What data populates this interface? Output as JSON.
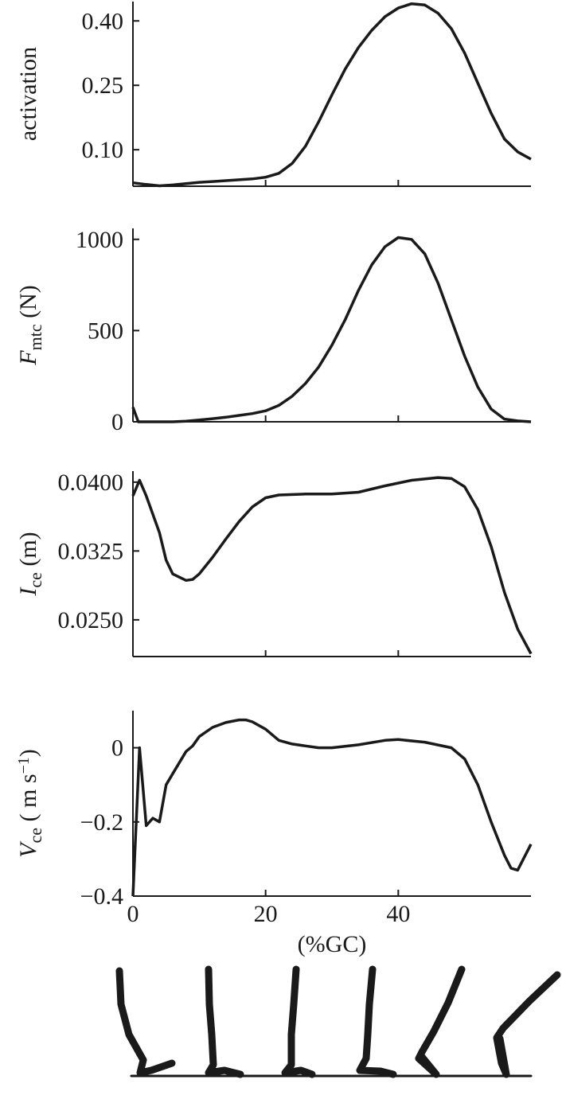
{
  "chart_data": [
    {
      "type": "line",
      "ylabel": [
        {
          "text": "activation"
        }
      ],
      "x": [
        0,
        2,
        4,
        6,
        8,
        10,
        12,
        14,
        16,
        18,
        20,
        22,
        24,
        26,
        28,
        30,
        32,
        34,
        36,
        38,
        40,
        42,
        44,
        46,
        48,
        50,
        52,
        54,
        56,
        58,
        60
      ],
      "values": [
        0.023,
        0.019,
        0.016,
        0.018,
        0.021,
        0.024,
        0.026,
        0.028,
        0.03,
        0.032,
        0.036,
        0.045,
        0.068,
        0.108,
        0.165,
        0.228,
        0.288,
        0.338,
        0.378,
        0.41,
        0.43,
        0.44,
        0.437,
        0.418,
        0.382,
        0.325,
        0.255,
        0.185,
        0.125,
        0.095,
        0.078
      ],
      "color": "#1a1a1a",
      "xlim": [
        0,
        60
      ],
      "ylim": [
        0.015,
        0.445
      ],
      "yticks": [
        {
          "value": 0.1,
          "label": "0.10"
        },
        {
          "value": 0.25,
          "label": "0.25"
        },
        {
          "value": 0.4,
          "label": "0.40"
        }
      ],
      "xticks": [
        20,
        40
      ],
      "show_xtick_labels": false
    },
    {
      "type": "line",
      "ylabel": [
        {
          "text": "F",
          "style": "italic"
        },
        {
          "text": "mtc",
          "style": "sub"
        },
        {
          "text": " (N)"
        }
      ],
      "x": [
        0,
        0.8,
        2,
        4,
        6,
        8,
        10,
        12,
        14,
        16,
        18,
        20,
        22,
        24,
        26,
        28,
        30,
        32,
        34,
        36,
        38,
        40,
        42,
        44,
        46,
        48,
        50,
        52,
        54,
        56,
        58,
        60
      ],
      "values": [
        80,
        0,
        0,
        0,
        0,
        3,
        10,
        17,
        25,
        35,
        45,
        60,
        90,
        140,
        210,
        300,
        420,
        560,
        720,
        860,
        960,
        1010,
        1000,
        920,
        760,
        560,
        360,
        190,
        70,
        15,
        5,
        0
      ],
      "color": "#1a1a1a",
      "xlim": [
        0,
        60
      ],
      "ylim": [
        0,
        1060
      ],
      "yticks": [
        0,
        500,
        1000
      ],
      "xticks": [
        20,
        40
      ],
      "show_xtick_labels": false
    },
    {
      "type": "line",
      "ylabel": [
        {
          "text": "I",
          "style": "italic"
        },
        {
          "text": "ce",
          "style": "sub"
        },
        {
          "text": " (m)"
        }
      ],
      "x": [
        0,
        1,
        2,
        4,
        5,
        6,
        8,
        9,
        10,
        12,
        14,
        16,
        18,
        20,
        22,
        26,
        30,
        34,
        38,
        42,
        46,
        48,
        50,
        52,
        54,
        56,
        58,
        60
      ],
      "values": [
        0.0385,
        0.0402,
        0.0385,
        0.0345,
        0.0315,
        0.03,
        0.0293,
        0.0294,
        0.03,
        0.0318,
        0.0338,
        0.0357,
        0.0373,
        0.0383,
        0.0386,
        0.0387,
        0.0387,
        0.0389,
        0.0396,
        0.0402,
        0.0405,
        0.0404,
        0.0395,
        0.037,
        0.033,
        0.028,
        0.024,
        0.0213
      ],
      "color": "#1a1a1a",
      "xlim": [
        0,
        60
      ],
      "ylim": [
        0.021,
        0.0412
      ],
      "yticks": [
        {
          "value": 0.025,
          "label": "0.0250"
        },
        {
          "value": 0.0325,
          "label": "0.0325"
        },
        {
          "value": 0.04,
          "label": "0.0400"
        }
      ],
      "xticks": [
        20,
        40
      ],
      "show_xtick_labels": false
    },
    {
      "type": "line",
      "ylabel": [
        {
          "text": "V",
          "style": "italic"
        },
        {
          "text": "ce",
          "style": "sub"
        },
        {
          "text": " ( m s"
        },
        {
          "text": "−1",
          "style": "sup"
        },
        {
          "text": ")"
        }
      ],
      "xlabel": "(%GC)",
      "x": [
        0,
        1,
        2,
        3,
        4,
        5,
        6,
        8,
        9,
        10,
        12,
        14,
        16,
        17,
        18,
        20,
        22,
        24,
        26,
        28,
        30,
        34,
        38,
        40,
        44,
        48,
        50,
        52,
        54,
        56,
        57,
        58,
        60
      ],
      "values": [
        -0.4,
        0.0,
        -0.21,
        -0.19,
        -0.2,
        -0.1,
        -0.07,
        -0.01,
        0.005,
        0.03,
        0.055,
        0.068,
        0.075,
        0.075,
        0.07,
        0.05,
        0.02,
        0.01,
        0.005,
        0.0,
        0.0,
        0.008,
        0.02,
        0.022,
        0.015,
        0.0,
        -0.03,
        -0.1,
        -0.2,
        -0.29,
        -0.325,
        -0.33,
        -0.26
      ],
      "color": "#1a1a1a",
      "xlim": [
        0,
        60
      ],
      "ylim": [
        -0.4,
        0.1
      ],
      "yticks": [
        {
          "value": -0.4,
          "label": "−0.4"
        },
        {
          "value": -0.2,
          "label": "−0.2"
        },
        0
      ],
      "xticks": [
        0,
        20,
        40
      ],
      "show_xtick_labels": true
    }
  ]
}
